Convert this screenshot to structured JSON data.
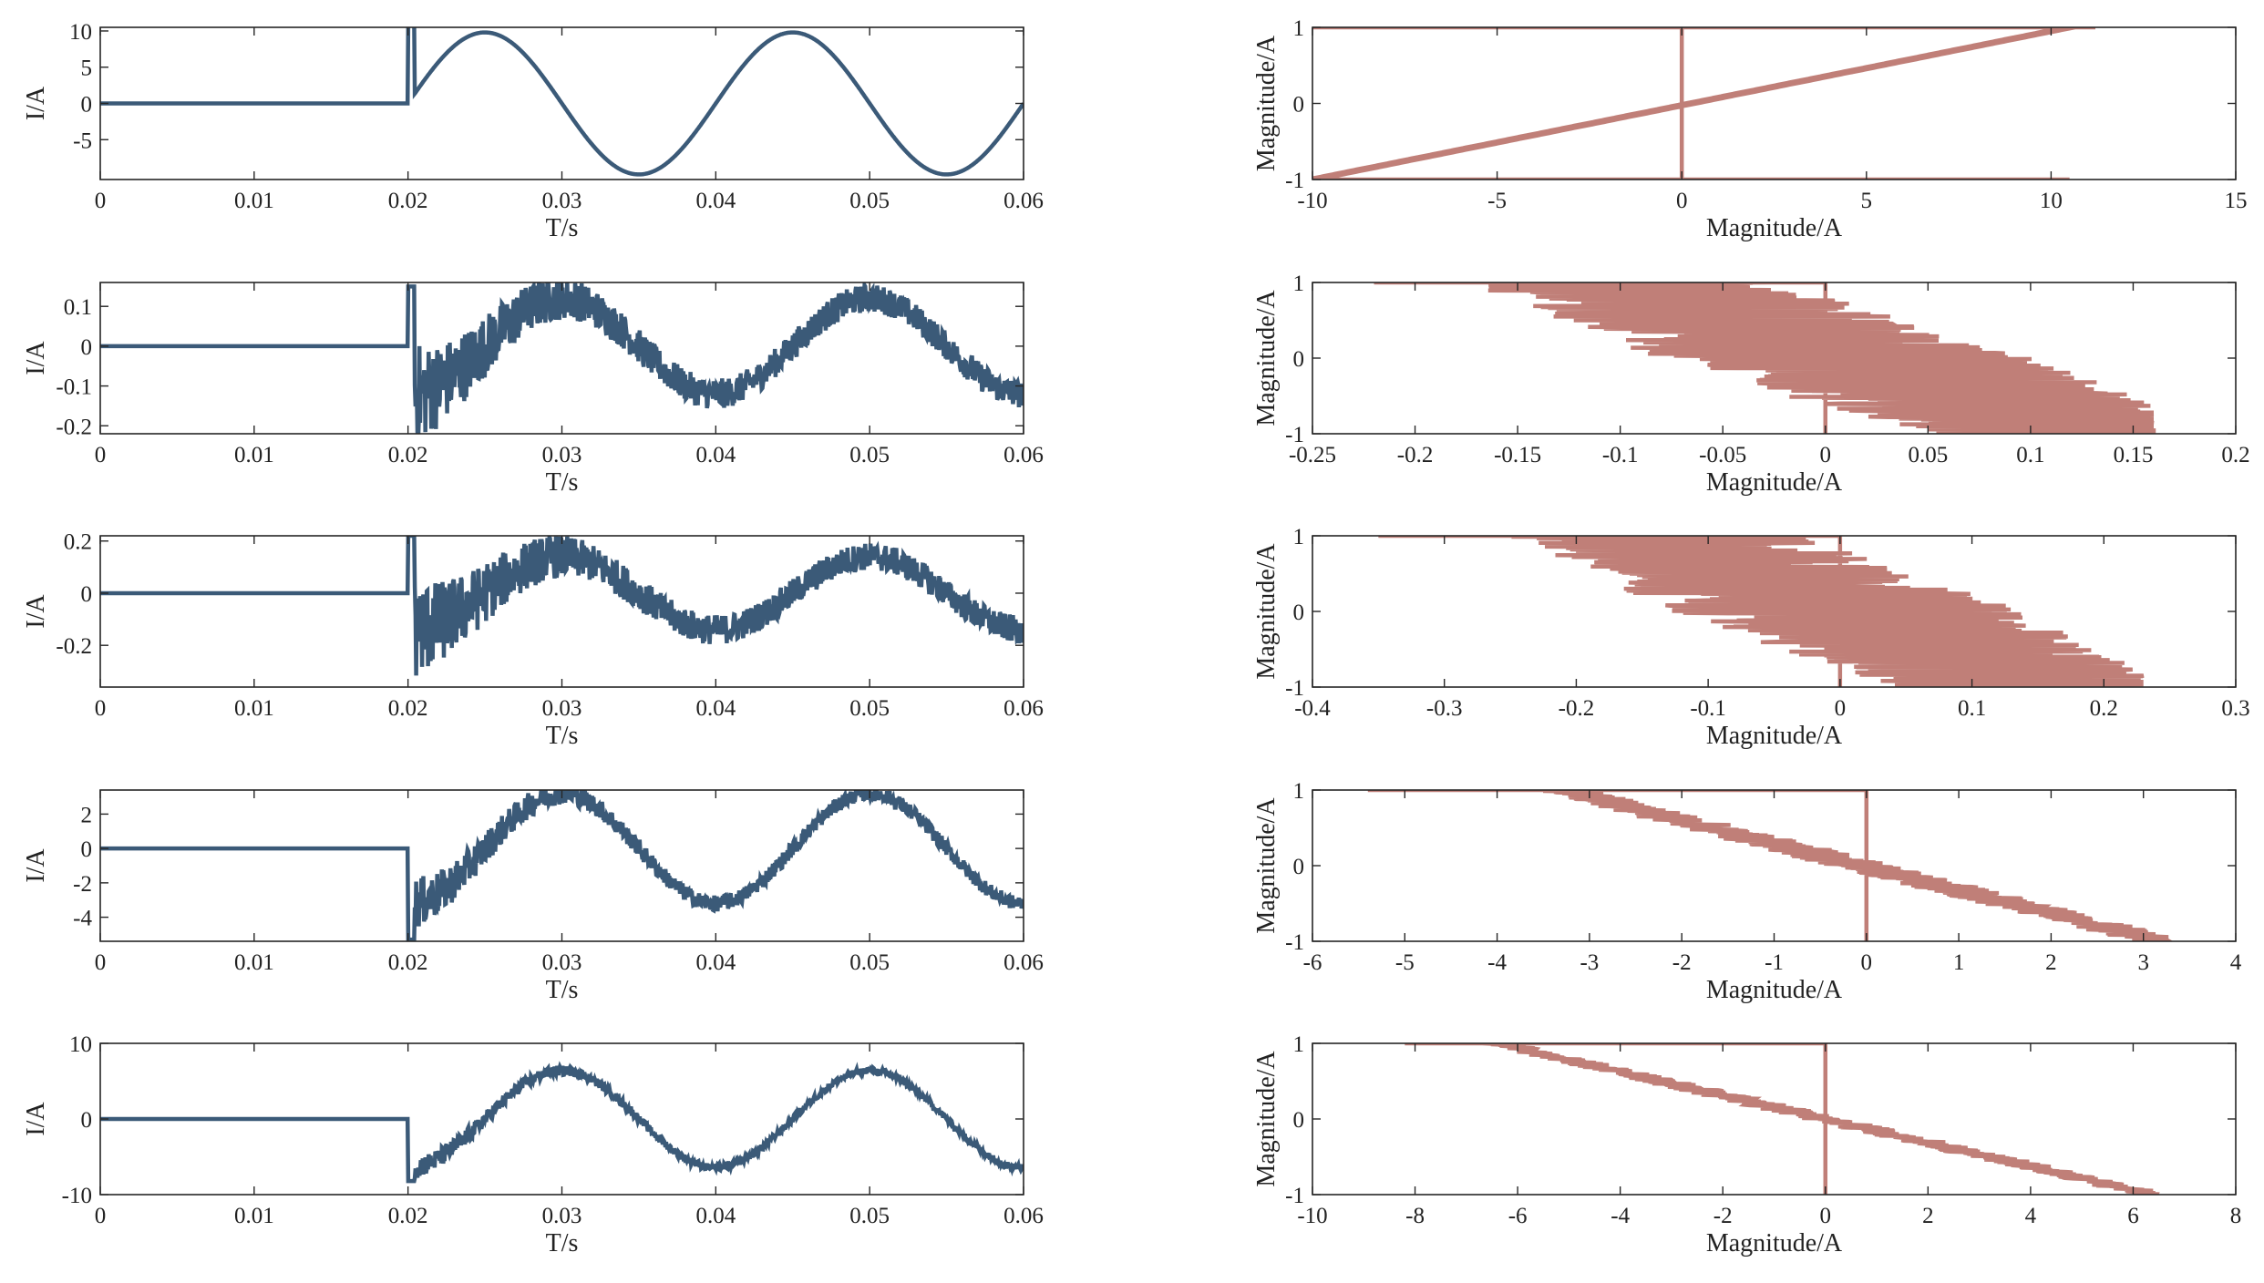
{
  "colors": {
    "current": "#3b5a78",
    "phase": "#c07f78"
  },
  "chart_data": [
    {
      "type": "line",
      "xlabel": "T/s",
      "ylabel": "I/A",
      "xlim": [
        0,
        0.06
      ],
      "ylim": [
        -10.5,
        10.5
      ],
      "xticks": [
        0,
        0.01,
        0.02,
        0.03,
        0.04,
        0.05,
        0.06
      ],
      "xticklabels": [
        "0",
        "0.01",
        "0.02",
        "0.03",
        "0.04",
        "0.05",
        "0.06"
      ],
      "yticks": [
        10,
        5,
        0,
        -5
      ],
      "yticklabels": [
        "10",
        "5",
        "0",
        "-5"
      ],
      "signal": {
        "onset": 0.02,
        "amplitude": 9.8,
        "frequency_hz": 50,
        "phase": "sine",
        "overshoot_peak": 11.0,
        "transient_noise": 0
      }
    },
    {
      "type": "scatter",
      "xlabel": "Magnitude/A",
      "ylabel": "Magnitude/A",
      "xlim": [
        -10,
        15
      ],
      "ylim": [
        -1,
        1
      ],
      "xticks": [
        -10,
        -5,
        0,
        5,
        10,
        15
      ],
      "xticklabels": [
        "-10",
        "-5",
        "0",
        "5",
        "10",
        "15"
      ],
      "yticks": [
        1,
        0,
        -1
      ],
      "yticklabels": [
        "1",
        "0",
        "-1"
      ],
      "pattern": {
        "x_at_top": 10.5,
        "x_at_bottom": -10,
        "max_x": 11.2,
        "min_x": -10,
        "noise": 0
      }
    },
    {
      "type": "line",
      "xlabel": "T/s",
      "ylabel": "I/A",
      "xlim": [
        0,
        0.06
      ],
      "ylim": [
        -0.22,
        0.16
      ],
      "xticks": [
        0,
        0.01,
        0.02,
        0.03,
        0.04,
        0.05,
        0.06
      ],
      "xticklabels": [
        "0",
        "0.01",
        "0.02",
        "0.03",
        "0.04",
        "0.05",
        "0.06"
      ],
      "yticks": [
        0.1,
        0,
        -0.1,
        -0.2
      ],
      "yticklabels": [
        "0.1",
        "0",
        "-0.1",
        "-0.2"
      ],
      "signal": {
        "onset": 0.02,
        "amplitude": 0.12,
        "frequency_hz": 50,
        "phase": "cosine-inverted",
        "overshoot_peak": 0.15,
        "transient_noise": 0.1
      }
    },
    {
      "type": "scatter",
      "xlabel": "Magnitude/A",
      "ylabel": "Magnitude/A",
      "xlim": [
        -0.25,
        0.2
      ],
      "ylim": [
        -1,
        1
      ],
      "xticks": [
        -0.25,
        -0.2,
        -0.15,
        -0.1,
        -0.05,
        0,
        0.05,
        0.1,
        0.15,
        0.2
      ],
      "xticklabels": [
        "-0.25",
        "-0.2",
        "-0.15",
        "-0.1",
        "-0.05",
        "0",
        "0.05",
        "0.1",
        "0.15",
        "0.2"
      ],
      "yticks": [
        1,
        0,
        -1
      ],
      "yticklabels": [
        "1",
        "0",
        "-1"
      ],
      "pattern": {
        "x_at_top": -0.1,
        "x_at_bottom": 0.12,
        "max_x": 0.16,
        "min_x": -0.22,
        "noise": 0.09
      }
    },
    {
      "type": "line",
      "xlabel": "T/s",
      "ylabel": "I/A",
      "xlim": [
        0,
        0.06
      ],
      "ylim": [
        -0.36,
        0.22
      ],
      "xticks": [
        0,
        0.01,
        0.02,
        0.03,
        0.04,
        0.05,
        0.06
      ],
      "xticklabels": [
        "0",
        "0.01",
        "0.02",
        "0.03",
        "0.04",
        "0.05",
        "0.06"
      ],
      "yticks": [
        0.2,
        0,
        -0.2
      ],
      "yticklabels": [
        "0.2",
        "0",
        "-0.2"
      ],
      "signal": {
        "onset": 0.02,
        "amplitude": 0.14,
        "frequency_hz": 50,
        "phase": "cosine-inverted",
        "overshoot_peak": 0.22,
        "transient_noise": 0.15
      }
    },
    {
      "type": "scatter",
      "xlabel": "Magnitude/A",
      "ylabel": "Magnitude/A",
      "xlim": [
        -0.4,
        0.3
      ],
      "ylim": [
        -1,
        1
      ],
      "xticks": [
        -0.4,
        -0.3,
        -0.2,
        -0.1,
        0,
        0.1,
        0.2,
        0.3
      ],
      "xticklabels": [
        "-0.4",
        "-0.3",
        "-0.2",
        "-0.1",
        "0",
        "0.1",
        "0.2",
        "0.3"
      ],
      "yticks": [
        1,
        0,
        -1
      ],
      "yticklabels": [
        "1",
        "0",
        "-1"
      ],
      "pattern": {
        "x_at_top": -0.14,
        "x_at_bottom": 0.15,
        "max_x": 0.23,
        "min_x": -0.35,
        "noise": 0.13
      }
    },
    {
      "type": "line",
      "xlabel": "T/s",
      "ylabel": "I/A",
      "xlim": [
        0,
        0.06
      ],
      "ylim": [
        -5.4,
        3.4
      ],
      "xticks": [
        0,
        0.01,
        0.02,
        0.03,
        0.04,
        0.05,
        0.06
      ],
      "xticklabels": [
        "0",
        "0.01",
        "0.02",
        "0.03",
        "0.04",
        "0.05",
        "0.06"
      ],
      "yticks": [
        2,
        0,
        -2,
        -4
      ],
      "yticklabels": [
        "2",
        "0",
        "-2",
        "-4"
      ],
      "signal": {
        "onset": 0.02,
        "amplitude": 3.2,
        "frequency_hz": 50,
        "phase": "cosine-inverted",
        "overshoot_peak": -5.3,
        "transient_noise": 1.2
      }
    },
    {
      "type": "scatter",
      "xlabel": "Magnitude/A",
      "ylabel": "Magnitude/A",
      "xlim": [
        -6,
        4
      ],
      "ylim": [
        -1,
        1
      ],
      "xticks": [
        -6,
        -5,
        -4,
        -3,
        -2,
        -1,
        0,
        1,
        2,
        3,
        4
      ],
      "xticklabels": [
        "-6",
        "-5",
        "-4",
        "-3",
        "-2",
        "-1",
        "0",
        "1",
        "2",
        "3",
        "4"
      ],
      "yticks": [
        1,
        0,
        -1
      ],
      "yticklabels": [
        "1",
        "0",
        "-1"
      ],
      "pattern": {
        "x_at_top": -3.3,
        "x_at_bottom": 3.2,
        "max_x": 3.25,
        "min_x": -5.4,
        "noise": 0.3
      }
    },
    {
      "type": "line",
      "xlabel": "T/s",
      "ylabel": "I/A",
      "xlim": [
        0,
        0.06
      ],
      "ylim": [
        -10,
        10
      ],
      "xticks": [
        0,
        0.01,
        0.02,
        0.03,
        0.04,
        0.05,
        0.06
      ],
      "xticklabels": [
        "0",
        "0.01",
        "0.02",
        "0.03",
        "0.04",
        "0.05",
        "0.06"
      ],
      "yticks": [
        10,
        0,
        -10
      ],
      "yticklabels": [
        "10",
        "0",
        "-10"
      ],
      "signal": {
        "onset": 0.02,
        "amplitude": 6.4,
        "frequency_hz": 50,
        "phase": "cosine-inverted",
        "overshoot_peak": -8.2,
        "transient_noise": 1.2
      }
    },
    {
      "type": "scatter",
      "xlabel": "Magnitude/A",
      "ylabel": "Magnitude/A",
      "xlim": [
        -10,
        8
      ],
      "ylim": [
        -1,
        1
      ],
      "xticks": [
        -10,
        -8,
        -6,
        -4,
        -2,
        0,
        2,
        4,
        6,
        8
      ],
      "xticklabels": [
        "-10",
        "-8",
        "-6",
        "-4",
        "-2",
        "0",
        "2",
        "4",
        "6",
        "8"
      ],
      "yticks": [
        1,
        0,
        -1
      ],
      "yticklabels": [
        "1",
        "0",
        "-1"
      ],
      "pattern": {
        "x_at_top": -6.4,
        "x_at_bottom": 6.4,
        "max_x": 6.5,
        "min_x": -8.2,
        "noise": 0.3
      }
    }
  ]
}
